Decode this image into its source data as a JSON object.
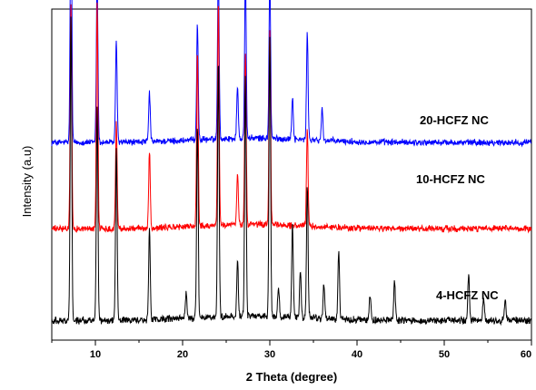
{
  "chart_data": {
    "type": "line",
    "xlabel": "2 Theta (degree)",
    "ylabel": "Intensity (a.u)",
    "xlim": [
      5,
      60
    ],
    "xticks": [
      10,
      20,
      30,
      40,
      50,
      60
    ],
    "xtick_labels": [
      "10",
      "20",
      "30",
      "40",
      "50",
      "60"
    ],
    "y_ticks_shown": false,
    "grid": false,
    "legend": "none; each pattern labelled inline at right",
    "series": [
      {
        "name": "20-HCFZ NC",
        "color": "#0000ff",
        "baseline": 0.855,
        "noise": 0.012,
        "peaks": [
          {
            "x": 7.2,
            "h": 1.26
          },
          {
            "x": 10.2,
            "h": 0.77
          },
          {
            "x": 12.4,
            "h": 0.48
          },
          {
            "x": 16.2,
            "h": 0.23
          },
          {
            "x": 21.7,
            "h": 0.54
          },
          {
            "x": 24.1,
            "h": 0.84
          },
          {
            "x": 26.3,
            "h": 0.24
          },
          {
            "x": 27.2,
            "h": 0.78
          },
          {
            "x": 30.0,
            "h": 0.74
          },
          {
            "x": 32.6,
            "h": 0.2
          },
          {
            "x": 34.3,
            "h": 0.5
          },
          {
            "x": 36.0,
            "h": 0.15
          }
        ]
      },
      {
        "name": "10-HCFZ NC",
        "color": "#ff0000",
        "baseline": 0.45,
        "noise": 0.012,
        "peaks": [
          {
            "x": 7.2,
            "h": 1.04
          },
          {
            "x": 10.2,
            "h": 1.06
          },
          {
            "x": 12.4,
            "h": 0.5
          },
          {
            "x": 16.2,
            "h": 0.36
          },
          {
            "x": 21.7,
            "h": 0.82
          },
          {
            "x": 24.1,
            "h": 1.05
          },
          {
            "x": 26.3,
            "h": 0.24
          },
          {
            "x": 27.2,
            "h": 0.8
          },
          {
            "x": 30.0,
            "h": 0.92
          },
          {
            "x": 34.3,
            "h": 0.46
          }
        ]
      },
      {
        "name": "4-HCFZ NC",
        "color": "#000000",
        "baseline": 0.02,
        "noise": 0.013,
        "peaks": [
          {
            "x": 7.2,
            "h": 1.42
          },
          {
            "x": 10.2,
            "h": 1.0
          },
          {
            "x": 12.4,
            "h": 0.82
          },
          {
            "x": 16.2,
            "h": 0.42
          },
          {
            "x": 20.4,
            "h": 0.12
          },
          {
            "x": 21.7,
            "h": 0.9
          },
          {
            "x": 24.1,
            "h": 1.2
          },
          {
            "x": 26.3,
            "h": 0.26
          },
          {
            "x": 27.2,
            "h": 1.12
          },
          {
            "x": 30.0,
            "h": 1.32
          },
          {
            "x": 31.0,
            "h": 0.14
          },
          {
            "x": 32.6,
            "h": 0.44
          },
          {
            "x": 33.5,
            "h": 0.22
          },
          {
            "x": 34.3,
            "h": 0.62
          },
          {
            "x": 36.2,
            "h": 0.16
          },
          {
            "x": 37.9,
            "h": 0.32
          },
          {
            "x": 41.5,
            "h": 0.12
          },
          {
            "x": 44.3,
            "h": 0.18
          },
          {
            "x": 52.8,
            "h": 0.22
          },
          {
            "x": 54.5,
            "h": 0.1
          },
          {
            "x": 57.0,
            "h": 0.1
          }
        ]
      }
    ]
  }
}
